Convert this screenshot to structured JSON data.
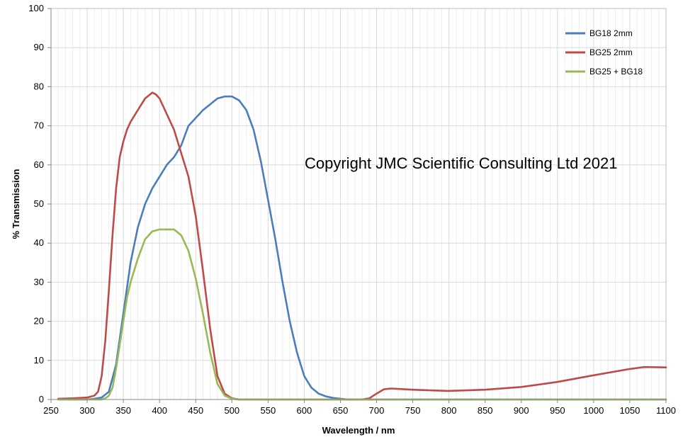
{
  "chart_data": {
    "type": "line",
    "title": "",
    "xlabel": "Wavelength / nm",
    "ylabel": "% Transmission",
    "xlim": [
      250,
      1100
    ],
    "ylim": [
      0,
      100
    ],
    "xticks": [
      250,
      300,
      350,
      400,
      450,
      500,
      550,
      600,
      650,
      700,
      750,
      800,
      850,
      900,
      950,
      1000,
      1050,
      1100
    ],
    "yticks": [
      0,
      10,
      20,
      30,
      40,
      50,
      60,
      70,
      80,
      90,
      100
    ],
    "grid": "vertical-and-horizontal",
    "legend_position": "top-right",
    "annotation": "Copyright JMC Scientific Consulting Ltd 2021",
    "series": [
      {
        "name": "BG18 2mm",
        "color": "#4a7ebb",
        "x": [
          260,
          300,
          310,
          320,
          330,
          340,
          350,
          360,
          370,
          380,
          390,
          400,
          410,
          420,
          430,
          440,
          450,
          460,
          470,
          480,
          490,
          500,
          510,
          520,
          530,
          540,
          550,
          560,
          570,
          580,
          590,
          600,
          610,
          620,
          630,
          640,
          650,
          660,
          670,
          680,
          690,
          700,
          750,
          800,
          850,
          900,
          950,
          1000,
          1050,
          1100
        ],
        "y": [
          0,
          0,
          0.2,
          0.5,
          2,
          9,
          22,
          35,
          44,
          50,
          54,
          57,
          60,
          62,
          65,
          70,
          72,
          74,
          75.5,
          77,
          77.5,
          77.5,
          76.5,
          74,
          69,
          61,
          51,
          41,
          30,
          20,
          12,
          6,
          3,
          1.5,
          0.8,
          0.4,
          0.2,
          0,
          0,
          0,
          0,
          0,
          0,
          0,
          0,
          0,
          0,
          0,
          0,
          0
        ]
      },
      {
        "name": "BG25 2mm",
        "color": "#be4b48",
        "x": [
          260,
          280,
          300,
          310,
          315,
          320,
          325,
          330,
          335,
          340,
          345,
          350,
          355,
          360,
          370,
          380,
          390,
          395,
          400,
          410,
          420,
          430,
          440,
          450,
          460,
          470,
          480,
          490,
          500,
          510,
          520,
          550,
          600,
          650,
          680,
          690,
          700,
          710,
          720,
          730,
          750,
          800,
          850,
          900,
          950,
          1000,
          1050,
          1070,
          1100
        ],
        "y": [
          0.2,
          0.3,
          0.5,
          1,
          2,
          6,
          15,
          28,
          42,
          54,
          62,
          66,
          69,
          71,
          74,
          77,
          78.5,
          78,
          77,
          73,
          69,
          63,
          57,
          47,
          33,
          18,
          6,
          1.5,
          0.3,
          0,
          0,
          0,
          0,
          0,
          0,
          0.3,
          1.5,
          2.6,
          2.8,
          2.7,
          2.5,
          2.2,
          2.5,
          3.2,
          4.5,
          6.2,
          7.8,
          8.3,
          8.2
        ]
      },
      {
        "name": "BG25 + BG18",
        "color": "#98b954",
        "x": [
          260,
          300,
          320,
          325,
          330,
          335,
          340,
          345,
          350,
          355,
          360,
          370,
          380,
          390,
          400,
          410,
          420,
          430,
          440,
          450,
          460,
          470,
          480,
          490,
          500,
          510,
          520,
          550,
          600,
          650,
          700,
          750,
          800,
          850,
          900,
          950,
          1000,
          1050,
          1100
        ],
        "y": [
          0,
          0,
          0,
          0.3,
          1,
          3,
          8,
          14,
          20,
          26,
          30,
          36,
          41,
          43,
          43.5,
          43.5,
          43.5,
          42,
          38,
          31,
          22,
          12,
          4,
          1,
          0.2,
          0,
          0,
          0,
          0,
          0,
          0,
          0,
          0,
          0,
          0,
          0,
          0,
          0,
          0
        ]
      }
    ]
  }
}
